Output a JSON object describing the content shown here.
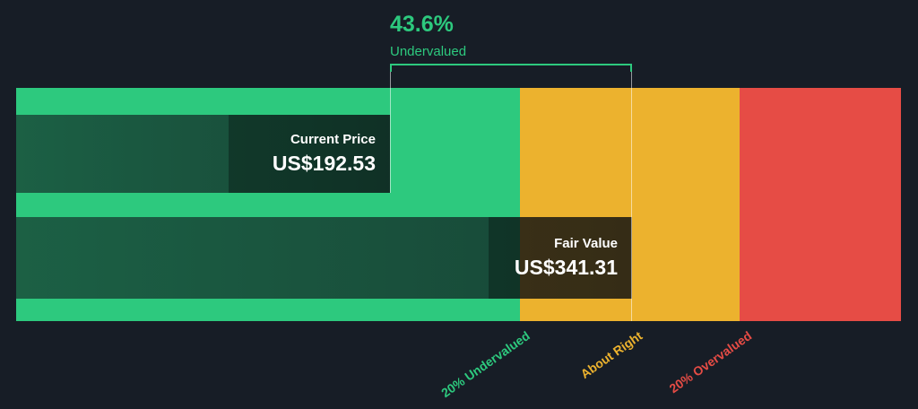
{
  "colors": {
    "background": "#171d26",
    "undervalued_green": "#2dc97e",
    "about_right_yellow": "#ecb22e",
    "overvalued_red": "#e64c45",
    "text_white": "#ffffff"
  },
  "chart_data": {
    "type": "bar",
    "annotation": {
      "percent": "43.6%",
      "label": "Undervalued"
    },
    "series": [
      {
        "name": "Current Price",
        "value": 192.53,
        "display": "US$192.53"
      },
      {
        "name": "Fair Value",
        "value": 341.31,
        "display": "US$341.31"
      }
    ],
    "zones": [
      {
        "label": "20% Undervalued",
        "color": "#2dc97e"
      },
      {
        "label": "About Right",
        "color": "#ecb22e"
      },
      {
        "label": "20% Overvalued",
        "color": "#e64c45"
      }
    ],
    "layout": {
      "zone_boundaries_ratio_of_fair_value": [
        0.8,
        1.2
      ],
      "legend": "none",
      "grid": "off"
    }
  }
}
